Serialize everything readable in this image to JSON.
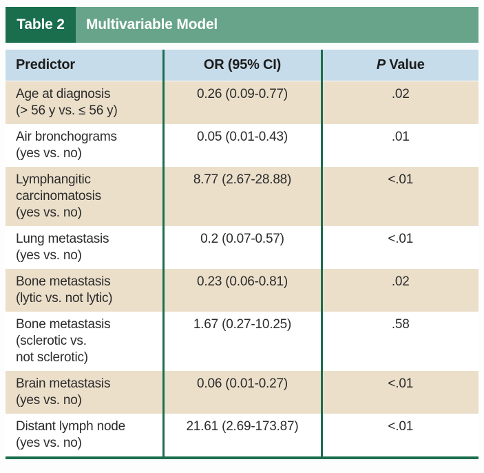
{
  "colors": {
    "dark_green": "#1a6e4d",
    "light_green": "#67a489",
    "header_blue": "#c7dcea",
    "row_beige": "#ebdfca",
    "text_dark": "#2b2b2b"
  },
  "table": {
    "tag": "Table 2",
    "title": "Multivariable Model",
    "header": {
      "predictor": "Predictor",
      "or": "OR (95% CI)",
      "p_italic": "P",
      "p_rest": "Value"
    },
    "rows": [
      {
        "predictor": "Age at diagnosis\n(> 56 y vs. ≤ 56 y)",
        "or": "0.26 (0.09-0.77)",
        "p": ".02"
      },
      {
        "predictor": "Air bronchograms\n(yes vs. no)",
        "or": "0.05 (0.01-0.43)",
        "p": ".01"
      },
      {
        "predictor": "Lymphangitic\ncarcinomatosis\n(yes vs. no)",
        "or": "8.77 (2.67-28.88)",
        "p": "<.01"
      },
      {
        "predictor": "Lung metastasis\n(yes vs. no)",
        "or": "0.2 (0.07-0.57)",
        "p": "<.01"
      },
      {
        "predictor": "Bone metastasis\n(lytic vs. not lytic)",
        "or": "0.23 (0.06-0.81)",
        "p": ".02"
      },
      {
        "predictor": "Bone metastasis\n(sclerotic vs.\nnot sclerotic)",
        "or": "1.67 (0.27-10.25)",
        "p": ".58"
      },
      {
        "predictor": "Brain metastasis\n(yes vs. no)",
        "or": "0.06 (0.01-0.27)",
        "p": "<.01"
      },
      {
        "predictor": "Distant lymph node\n(yes vs. no)",
        "or": "21.61 (2.69-173.87)",
        "p": "<.01"
      }
    ]
  },
  "chart_data": {
    "type": "table",
    "title": "Table 2  Multivariable Model",
    "columns": [
      "Predictor",
      "OR (95% CI)",
      "P Value"
    ],
    "rows": [
      [
        "Age at diagnosis (> 56 y vs. ≤ 56 y)",
        "0.26 (0.09-0.77)",
        ".02"
      ],
      [
        "Air bronchograms (yes vs. no)",
        "0.05 (0.01-0.43)",
        ".01"
      ],
      [
        "Lymphangitic carcinomatosis (yes vs. no)",
        "8.77 (2.67-28.88)",
        "<.01"
      ],
      [
        "Lung metastasis (yes vs. no)",
        "0.2 (0.07-0.57)",
        "<.01"
      ],
      [
        "Bone metastasis (lytic vs. not lytic)",
        "0.23 (0.06-0.81)",
        ".02"
      ],
      [
        "Bone metastasis (sclerotic vs. not sclerotic)",
        "1.67 (0.27-10.25)",
        ".58"
      ],
      [
        "Brain metastasis (yes vs. no)",
        "0.06 (0.01-0.27)",
        "<.01"
      ],
      [
        "Distant lymph node (yes vs. no)",
        "21.61 (2.69-173.87)",
        "<.01"
      ]
    ]
  }
}
